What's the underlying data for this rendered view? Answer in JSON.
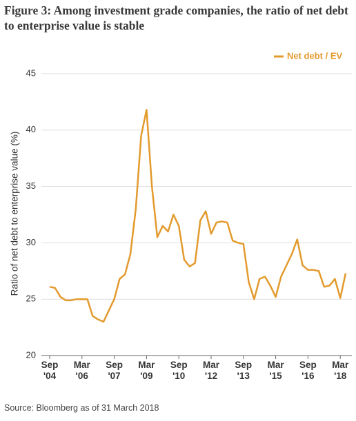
{
  "chart_data": {
    "type": "line",
    "title": "Figure 3: Among investment grade companies, the ratio of net debt to enterprise value is stable",
    "y_label": "Ratio of net debt to enterprise value (%)",
    "source": "Source: Bloomberg as of 31 March 2018",
    "categories": [
      "Sep '04",
      null,
      null,
      null,
      null,
      null,
      "Mar '06",
      null,
      null,
      null,
      null,
      null,
      "Sep '07",
      null,
      null,
      null,
      null,
      null,
      "Mar '09",
      null,
      null,
      null,
      null,
      null,
      "Sep '10",
      null,
      null,
      null,
      null,
      null,
      "Mar '12",
      null,
      null,
      null,
      null,
      null,
      "Sep '13",
      null,
      null,
      null,
      null,
      null,
      "Mar '15",
      null,
      null,
      null,
      null,
      null,
      "Sep '16",
      null,
      null,
      null,
      null,
      null,
      "Mar '18",
      null
    ],
    "series": [
      {
        "name": "Net debt / EV",
        "color": "#e39a2d",
        "values": [
          26.1,
          26,
          25.2,
          24.9,
          24.9,
          25,
          25,
          25,
          23.5,
          23.2,
          23,
          24,
          25,
          26.8,
          27.2,
          29,
          33,
          39.5,
          41.8,
          35,
          30.5,
          31.5,
          31,
          32.5,
          31.5,
          28.5,
          27.9,
          28.2,
          32,
          32.8,
          30.8,
          31.8,
          31.9,
          31.8,
          30.2,
          30,
          29.9,
          26.5,
          25,
          26.8,
          27,
          26.2,
          25.2,
          27,
          28,
          29,
          30.3,
          28,
          27.6,
          27.6,
          27.5,
          26.1,
          26.2,
          26.8,
          25.1,
          27.3
        ]
      }
    ],
    "ylim": [
      20,
      45
    ],
    "yticks": [
      20,
      25,
      30,
      35,
      40,
      45
    ],
    "grid": true,
    "legend": "top-right"
  }
}
